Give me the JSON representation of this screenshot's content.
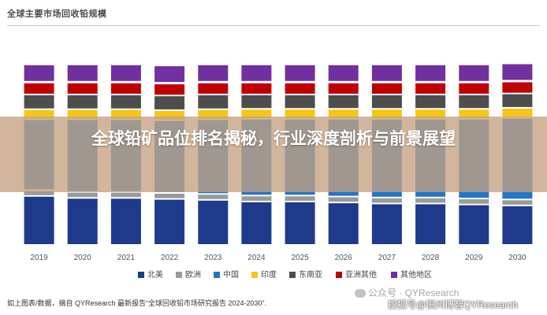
{
  "title": "全球主要市场回收铅规模",
  "banner": "全球铅矿品位排名揭秘，行业深度剖析与前景展望",
  "source": "如上图表/数据，摘自 QYResearch 最新报告“全球回收铅市场研究报告 2024-2030”.",
  "watermark": {
    "line1": "公众号 · QYResearch",
    "line2": "搜狐号@恒州博智QYResearch"
  },
  "chart_data": {
    "type": "bar",
    "stacked": true,
    "normalized": true,
    "categories": [
      "2019",
      "2020",
      "2021",
      "2022",
      "2023",
      "2024",
      "2025",
      "2026",
      "2027",
      "2028",
      "2029",
      "2030"
    ],
    "ylim": [
      0,
      1
    ],
    "grid": false,
    "legend_position": "bottom",
    "series": [
      {
        "name": "北美",
        "color": "#1f3a8a",
        "values": [
          0.246,
          0.236,
          0.236,
          0.231,
          0.226,
          0.218,
          0.218,
          0.213,
          0.208,
          0.208,
          0.203,
          0.198
        ]
      },
      {
        "name": "欧洲",
        "color": "#9a9a9a",
        "values": [
          0.03,
          0.03,
          0.03,
          0.03,
          0.03,
          0.03,
          0.03,
          0.03,
          0.03,
          0.03,
          0.03,
          0.03
        ]
      },
      {
        "name": "中国",
        "color": "#1f77c8",
        "values": [
          0.355,
          0.365,
          0.365,
          0.365,
          0.375,
          0.385,
          0.385,
          0.39,
          0.395,
          0.395,
          0.4,
          0.41
        ]
      },
      {
        "name": "印度",
        "color": "#f5c518",
        "values": [
          0.05,
          0.05,
          0.05,
          0.05,
          0.05,
          0.05,
          0.05,
          0.05,
          0.05,
          0.05,
          0.05,
          0.05
        ]
      },
      {
        "name": "东南亚",
        "color": "#4d4d4d",
        "values": [
          0.074,
          0.074,
          0.074,
          0.074,
          0.074,
          0.072,
          0.072,
          0.072,
          0.072,
          0.072,
          0.072,
          0.072
        ]
      },
      {
        "name": "亚洲其他",
        "color": "#c00000",
        "values": [
          0.06,
          0.06,
          0.06,
          0.06,
          0.06,
          0.06,
          0.06,
          0.06,
          0.06,
          0.06,
          0.06,
          0.06
        ]
      },
      {
        "name": "其他地区",
        "color": "#7030a0",
        "values": [
          0.087,
          0.087,
          0.087,
          0.087,
          0.087,
          0.087,
          0.087,
          0.087,
          0.087,
          0.087,
          0.087,
          0.087
        ]
      }
    ]
  }
}
